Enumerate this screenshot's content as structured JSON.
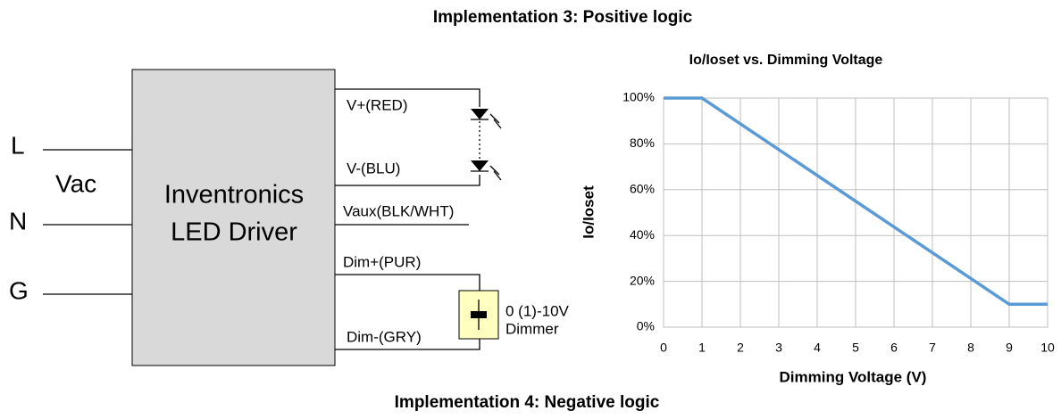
{
  "header": {
    "title": "Implementation 3: Positive logic",
    "footer": "Implementation 4: Negative logic"
  },
  "diagram": {
    "inputs": [
      "L",
      "Vac",
      "N",
      "G"
    ],
    "driver": [
      "Inventronics",
      "LED Driver"
    ],
    "wires": [
      "V+(RED)",
      "V-(BLU)",
      "Vaux(BLK/WHT)",
      "Dim+(PUR)",
      "Dim-(GRY)"
    ],
    "dimmer": [
      "0 (1)-10V",
      "Dimmer"
    ]
  },
  "chart_data": {
    "type": "line",
    "title": "Io/Ioset vs. Dimming Voltage",
    "x_label": "Dimming Voltage (V)",
    "y_label": "Io/Ioset",
    "x": [
      0,
      1,
      9,
      10
    ],
    "series": [
      {
        "name": "Io/Ioset",
        "color": "#5b9bd5",
        "values": [
          100,
          100,
          10,
          10
        ]
      }
    ],
    "xlim": [
      0,
      10
    ],
    "xticks": [
      0,
      1,
      2,
      3,
      4,
      5,
      6,
      7,
      8,
      9,
      10
    ],
    "ylim": [
      0,
      100
    ],
    "yticks": [
      {
        "value": 0,
        "label": "0%"
      },
      {
        "value": 20,
        "label": "20%"
      },
      {
        "value": 40,
        "label": "40%"
      },
      {
        "value": 60,
        "label": "60%"
      },
      {
        "value": 80,
        "label": "80%"
      },
      {
        "value": 100,
        "label": "100%"
      }
    ],
    "grid": true
  }
}
